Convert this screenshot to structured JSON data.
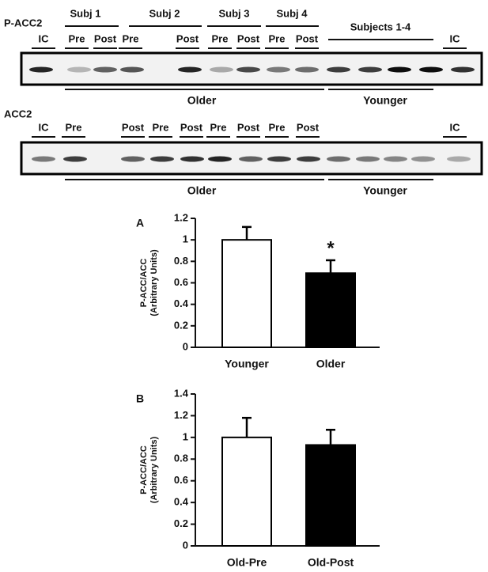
{
  "blots": [
    {
      "label": "P-ACC2",
      "groups": [
        "Subj 1",
        "Subj 2",
        "Subj 3",
        "Subj 4",
        "Subjects 1-4"
      ],
      "lanes": [
        "IC",
        "Pre",
        "Post",
        "Pre",
        "Post",
        "Pre",
        "Post",
        "Pre",
        "Post",
        "IC"
      ],
      "cohorts": [
        "Older",
        "Younger"
      ]
    },
    {
      "label": "ACC2",
      "lanes": [
        "IC",
        "Pre",
        "Post",
        "Pre",
        "Post",
        "Pre",
        "Post",
        "Pre",
        "Post",
        "IC"
      ],
      "cohorts": [
        "Older",
        "Younger"
      ]
    }
  ],
  "chart_data": [
    {
      "type": "bar",
      "panel": "A",
      "ylabel": [
        "P-ACC/ACC",
        "(Arbitrary Units)"
      ],
      "categories": [
        "Younger",
        "Older"
      ],
      "series": [
        {
          "values": [
            1,
            0.69
          ],
          "errors": [
            0.12,
            0.12
          ],
          "colors": [
            "#ffffff",
            "#000000"
          ]
        }
      ],
      "annotation": "*",
      "ylim": [
        0,
        1.2
      ],
      "yticks": [
        0,
        0.2,
        0.4,
        0.6,
        0.8,
        1,
        1.2
      ]
    },
    {
      "type": "bar",
      "panel": "B",
      "ylabel": [
        "P-ACC/ACC",
        "(Arbitrary Units)"
      ],
      "categories": [
        "Old-Pre",
        "Old-Post"
      ],
      "series": [
        {
          "values": [
            1,
            0.93
          ],
          "errors": [
            0.18,
            0.14
          ],
          "colors": [
            "#ffffff",
            "#000000"
          ]
        }
      ],
      "ylim": [
        0,
        1.4
      ],
      "yticks": [
        0,
        0.2,
        0.4,
        0.6,
        0.8,
        1,
        1.2,
        1.4
      ]
    }
  ]
}
